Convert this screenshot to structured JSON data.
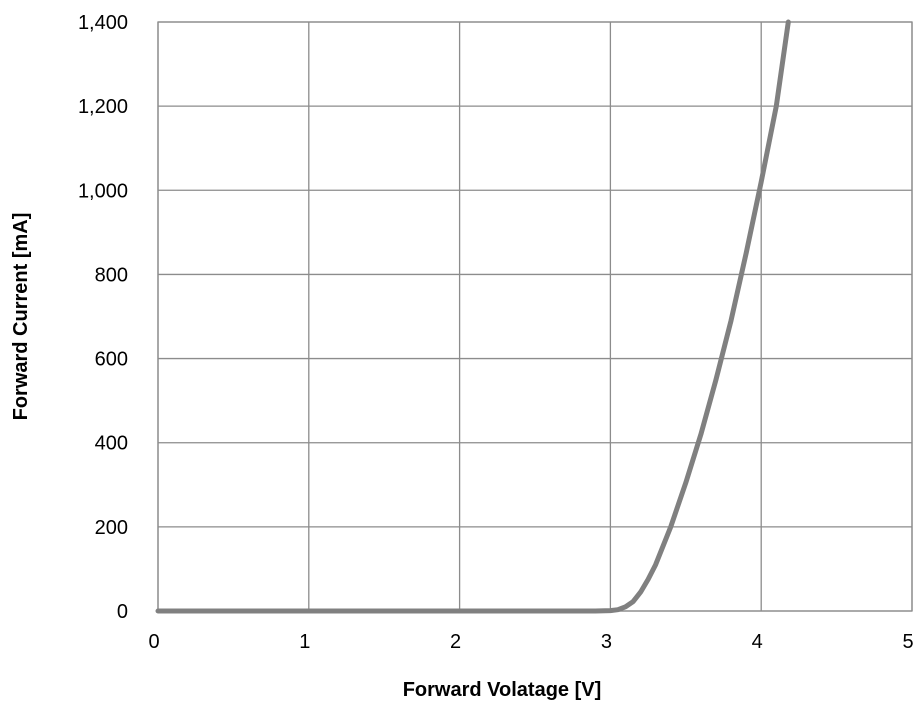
{
  "chart_data": {
    "type": "line",
    "title": "",
    "xlabel": "Forward  Volatage [V]",
    "ylabel": "Forward Current [mA]",
    "xlim": [
      0,
      5
    ],
    "ylim": [
      0,
      1400
    ],
    "x_ticks": [
      0,
      1,
      2,
      3,
      4,
      5
    ],
    "x_tick_labels": [
      "0",
      "1",
      "2",
      "3",
      "4",
      "5"
    ],
    "y_ticks": [
      0,
      200,
      400,
      600,
      800,
      1000,
      1200,
      1400
    ],
    "y_tick_labels": [
      "0",
      "200",
      "400",
      "600",
      "800",
      "1,000",
      "1,200",
      "1,400"
    ],
    "grid": true,
    "legend": "none",
    "series": [
      {
        "color": "#808080",
        "x": [
          0,
          1,
          2,
          2.9,
          3.0,
          3.05,
          3.1,
          3.15,
          3.2,
          3.25,
          3.3,
          3.4,
          3.5,
          3.6,
          3.7,
          3.8,
          3.9,
          4.0,
          4.1,
          4.18
        ],
        "y": [
          0,
          0,
          0,
          0,
          1,
          3,
          10,
          22,
          45,
          75,
          110,
          200,
          305,
          420,
          550,
          690,
          850,
          1020,
          1200,
          1400
        ]
      }
    ]
  }
}
